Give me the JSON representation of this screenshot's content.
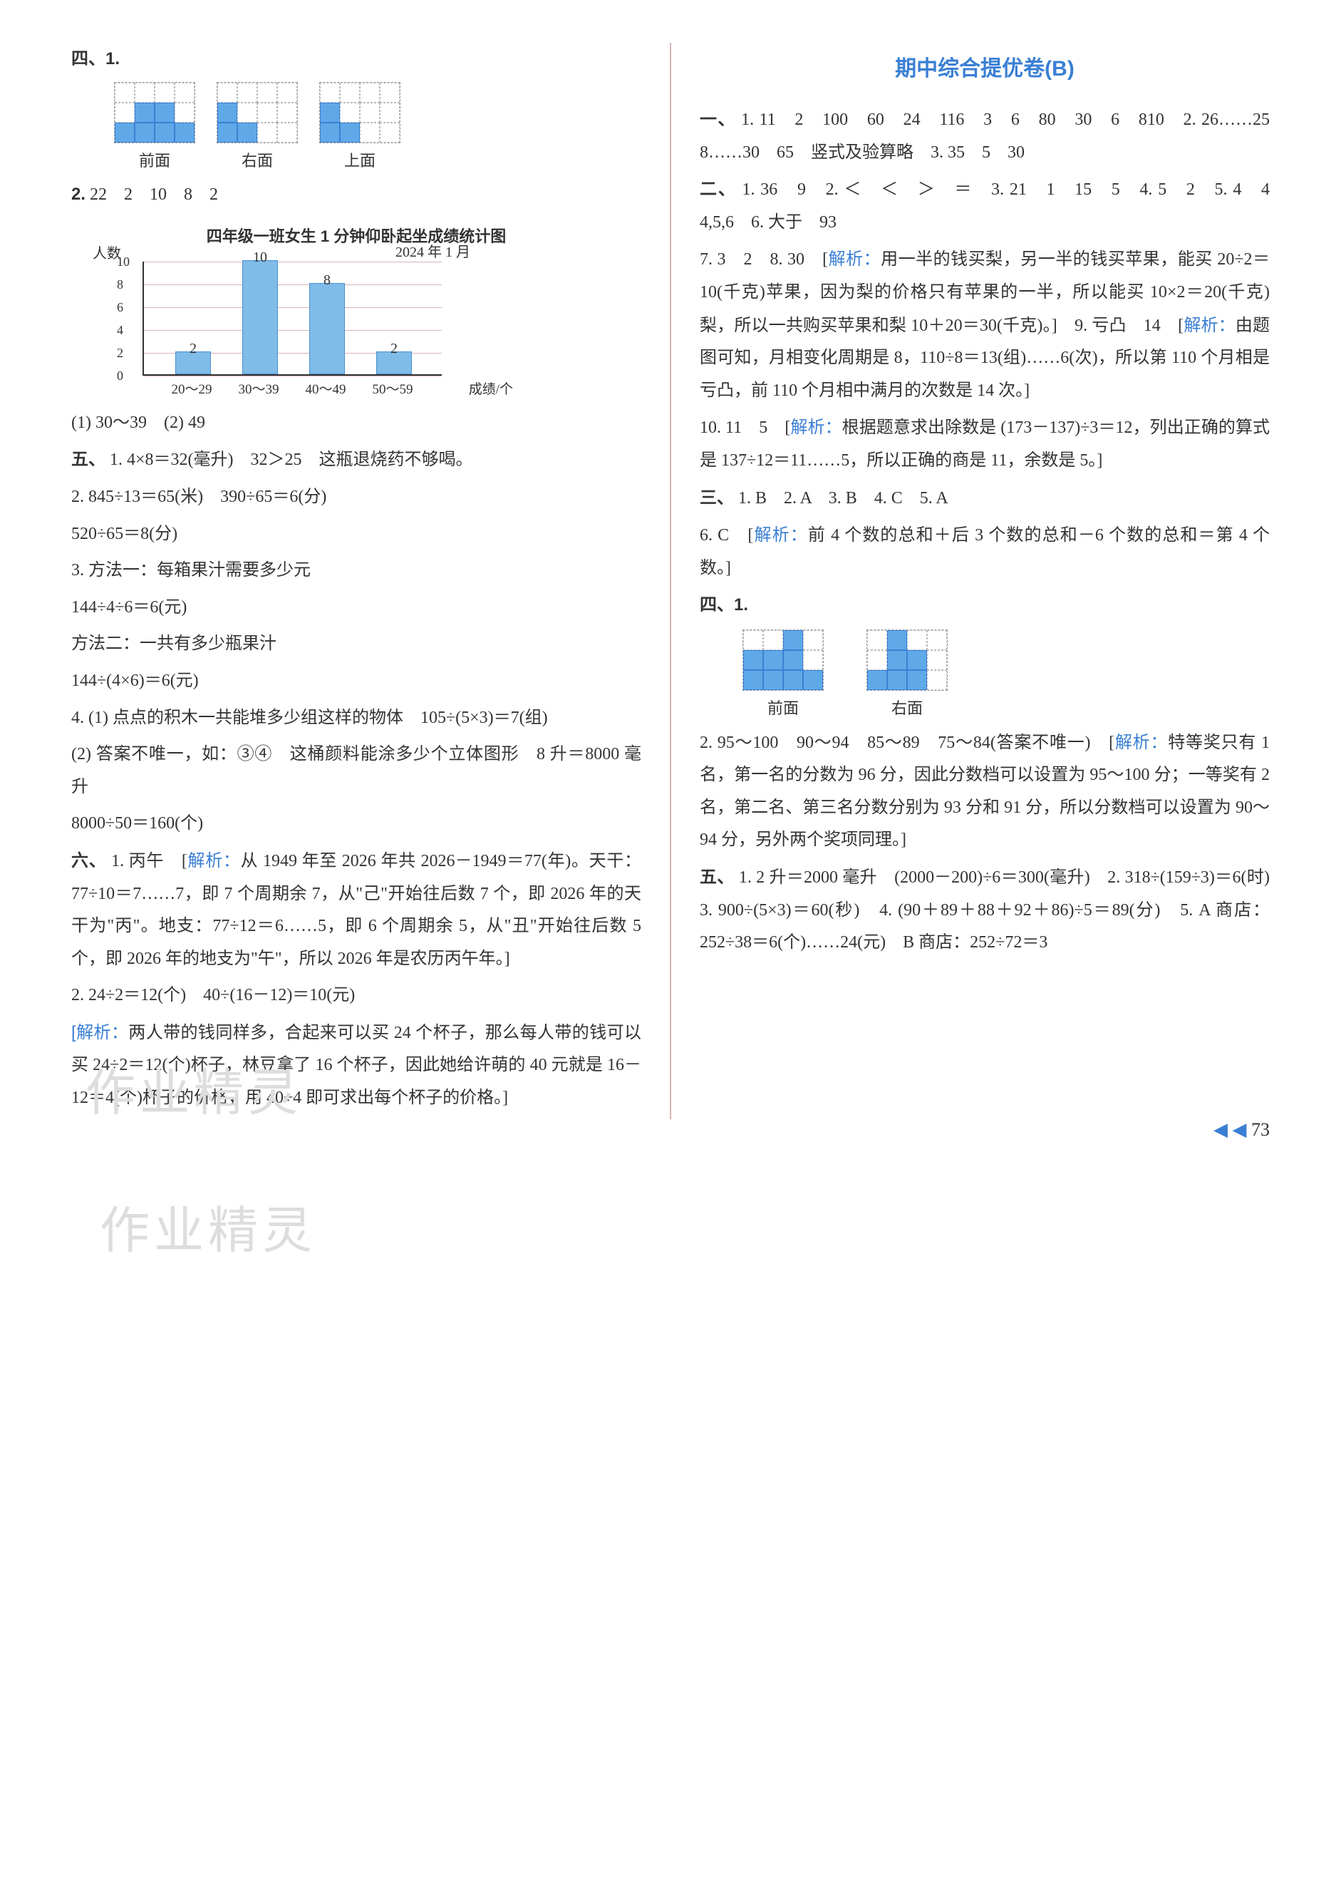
{
  "left": {
    "s4": {
      "label": "四、1.",
      "views": {
        "front": {
          "label": "前面",
          "rows": [
            [
              0,
              0,
              0,
              0
            ],
            [
              0,
              1,
              1,
              0
            ],
            [
              1,
              1,
              1,
              1
            ]
          ]
        },
        "right": {
          "label": "右面",
          "rows": [
            [
              0,
              0
            ],
            [
              1,
              0
            ],
            [
              1,
              1
            ]
          ]
        },
        "top": {
          "label": "上面",
          "rows": [
            [
              1,
              0
            ],
            [
              1,
              1
            ]
          ]
        }
      },
      "item2_label": "2.",
      "item2_vals": "22　2　10　8　2",
      "chart": {
        "title": "四年级一班女生 1 分钟仰卧起坐成绩统计图",
        "ylabel": "人数",
        "date": "2024 年 1 月",
        "categories": [
          "20～29",
          "30～39",
          "40～49",
          "50～59"
        ],
        "values": [
          2,
          10,
          8,
          2
        ],
        "ymax": 10,
        "ystep": 2,
        "bar_color": "#7fbce8",
        "grid_color": "#d9b3b3",
        "xlabel": "成绩/个"
      },
      "sub1": "(1) 30～39　(2) 49"
    },
    "s5": {
      "label": "五、",
      "i1": "1. 4×8＝32(毫升)　32＞25　这瓶退烧药不够喝。",
      "i2a": "2. 845÷13＝65(米)　390÷65＝6(分)",
      "i2b": "520÷65＝8(分)",
      "i3a": "3. 方法一：每箱果汁需要多少元",
      "i3b": "144÷4÷6＝6(元)",
      "i3c": "方法二：一共有多少瓶果汁",
      "i3d": "144÷(4×6)＝6(元)",
      "i4a": "4. (1) 点点的积木一共能堆多少组这样的物体　105÷(5×3)＝7(组)",
      "i4b": "(2) 答案不唯一，如：③④　这桶颜料能涂多少个立体图形　8 升＝8000 毫升",
      "i4c": "8000÷50＝160(个)"
    },
    "s6": {
      "label": "六、",
      "i1_pre": "1. 丙午　[",
      "i1_tag": "解析：",
      "i1_body": "从 1949 年至 2026 年共 2026－1949＝77(年)。天干：77÷10＝7……7，即 7 个周期余 7，从\"己\"开始往后数 7 个，即 2026 年的天干为\"丙\"。地支：77÷12＝6……5，即 6 个周期余 5，从\"丑\"开始往后数 5 个，即 2026 年的地支为\"午\"，所以 2026 年是农历丙午年。]",
      "i2a": "2. 24÷2＝12(个)　40÷(16－12)＝10(元)",
      "i2b_tag": "[解析：",
      "i2b_body": "两人带的钱同样多，合起来可以买 24 个杯子，那么每人带的钱可以买 24÷2＝12(个)杯子，林豆拿了 16 个杯子，因此她给许萌的 40 元就是 16－12＝4(个)杯子的价格，用 40÷4 即可求出每个杯子的价格。]"
    }
  },
  "right": {
    "title": "期中综合提优卷(B)",
    "s1": {
      "label": "一、",
      "i1": "1. 11　2　100　60　24　116　3　6　80　30　6　810　2. 26……25　8……30　65　竖式及验算略　3. 35　5　30"
    },
    "s2": {
      "label": "二、",
      "row1": "1. 36　9　2. ＜　＜　＞　＝　3. 21　1　15　5　4. 5　2　5. 4　4　4,5,6　6. 大于　93",
      "row2_pre": "7. 3　2　8. 30　[",
      "row2_tag": "解析：",
      "row2_body": "用一半的钱买梨，另一半的钱买苹果，能买 20÷2＝10(千克)苹果，因为梨的价格只有苹果的一半，所以能买 10×2＝20(千克)梨，所以一共购买苹果和梨 10＋20＝30(千克)。]　9. 亏凸　14　[",
      "row2_tag2": "解析：",
      "row2_body2": "由题图可知，月相变化周期是 8，110÷8＝13(组)……6(次)，所以第 110 个月相是亏凸，前 110 个月相中满月的次数是 14 次。]",
      "row3_pre": "10. 11　5　[",
      "row3_tag": "解析：",
      "row3_body": "根据题意求出除数是 (173－137)÷3＝12，列出正确的算式是 137÷12＝11……5，所以正确的商是 11，余数是 5。]"
    },
    "s3": {
      "label": "三、",
      "row1": "1. B　2. A　3. B　4. C　5. A",
      "row2_pre": "6. C　[",
      "row2_tag": "解析：",
      "row2_body": "前 4 个数的总和＋后 3 个数的总和－6 个数的总和＝第 4 个数。]"
    },
    "s4": {
      "label": "四、1.",
      "views": {
        "front": {
          "label": "前面",
          "rows": [
            [
              0,
              0,
              1,
              0
            ],
            [
              1,
              1,
              1,
              0
            ],
            [
              1,
              1,
              1,
              1
            ]
          ]
        },
        "right": {
          "label": "右面",
          "rows": [
            [
              0,
              1,
              0
            ],
            [
              0,
              1,
              1
            ],
            [
              1,
              1,
              1
            ]
          ]
        }
      },
      "i2_pre": "2. 95～100　90～94　85～89　75～84(答案不唯一)　[",
      "i2_tag": "解析：",
      "i2_body": "特等奖只有 1 名，第一名的分数为 96 分，因此分数档可以设置为 95～100 分；一等奖有 2 名，第二名、第三名分数分别为 93 分和 91 分，所以分数档可以设置为 90～94 分，另外两个奖项同理。]"
    },
    "s5": {
      "label": "五、",
      "body": "1. 2 升＝2000 毫升　(2000－200)÷6＝300(毫升)　2. 318÷(159÷3)＝6(时)　3. 900÷(5×3)＝60(秒)　4. (90＋89＋88＋92＋86)÷5＝89(分)　5. A 商店：252÷38＝6(个)……24(元)　B 商店：252÷72＝3"
    }
  },
  "page": "73",
  "page_marker": "◀ ◀",
  "watermarks": [
    "作业精灵",
    "作业精灵"
  ],
  "colors": {
    "accent": "#3a7fd4",
    "bar": "#7fbce8",
    "grid": "#d9b3b3"
  }
}
